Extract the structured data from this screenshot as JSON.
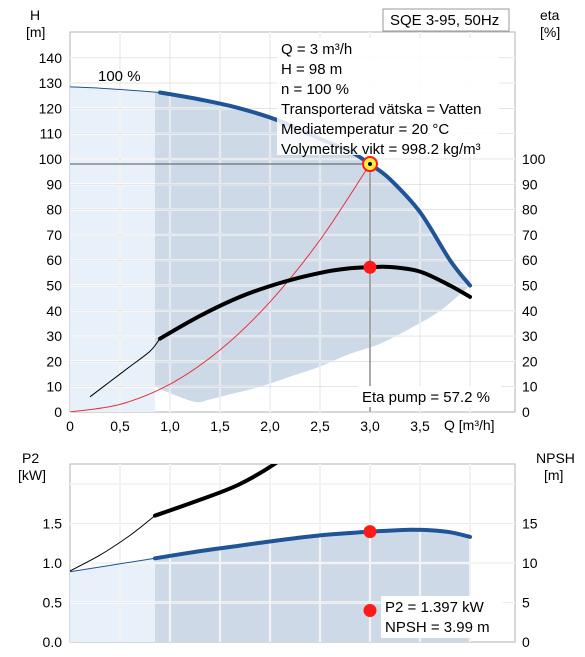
{
  "chart_data": [
    {
      "type": "line",
      "title": "SQE 3-95, 50Hz",
      "ylabel_left": "H",
      "ylabel_left_unit": "[m]",
      "ylabel_right": "eta",
      "ylabel_right_unit": "[%]",
      "xlabel": "Q [m³/h]",
      "xlim": [
        0,
        4
      ],
      "ylim": [
        0,
        150
      ],
      "x_ticks": [
        "0",
        "0,5",
        "1,0",
        "1,5",
        "2,0",
        "2,5",
        "3,0",
        "3,5"
      ],
      "y_ticks": [
        "0",
        "10",
        "20",
        "30",
        "40",
        "50",
        "60",
        "70",
        "80",
        "90",
        "100",
        "110",
        "120",
        "130",
        "140"
      ],
      "y_ticks_right": [
        "0",
        "10",
        "20",
        "30",
        "40",
        "50",
        "60",
        "70",
        "80",
        "90",
        "100"
      ],
      "speed_label": "100 %",
      "info_lines": [
        "Q = 3 m³/h",
        "H = 98 m",
        "n = 100 %",
        "Transporterad vätska = Vatten",
        "Mediatemperatur = 20 °C",
        "Volymetrisk vikt = 998.2 kg/m³"
      ],
      "eta_label": "Eta pump = 57.2 %",
      "grid": true,
      "series": {
        "head_thin": {
          "x": [
            0,
            0.3,
            0.6,
            0.9
          ],
          "y": [
            128.5,
            128,
            127.2,
            126.3
          ]
        },
        "head": {
          "x": [
            0.9,
            1.3,
            1.7,
            2.1,
            2.5,
            2.8,
            3.0,
            3.2,
            3.5,
            3.8,
            4.0
          ],
          "y": [
            126.3,
            123.5,
            120,
            115,
            108,
            103,
            98,
            92,
            79,
            60,
            50
          ]
        },
        "eta_thin": {
          "x": [
            0.2,
            0.4,
            0.6,
            0.8,
            0.9
          ],
          "y": [
            6,
            12,
            18,
            24,
            29
          ]
        },
        "eta": {
          "x": [
            0.9,
            1.3,
            1.7,
            2.1,
            2.5,
            2.8,
            3.0,
            3.2,
            3.5,
            3.8,
            4.0
          ],
          "y": [
            29,
            38,
            45.5,
            51,
            55,
            56.8,
            57.2,
            57.3,
            55.5,
            50,
            45.5
          ]
        },
        "system_curve": {
          "x": [
            0,
            0.5,
            1.0,
            1.5,
            2.0,
            2.5,
            3.0
          ],
          "y": [
            0,
            3,
            11,
            24.5,
            43.5,
            68,
            98
          ]
        },
        "region_upper": {
          "x": [
            0,
            0.9,
            1.3,
            1.7,
            2.1,
            2.5,
            2.8,
            3.0,
            3.2,
            3.5,
            3.8,
            4.0
          ],
          "y": [
            128.5,
            126.3,
            123.5,
            120,
            115,
            108,
            103,
            98,
            92,
            79,
            60,
            50
          ]
        },
        "region_lower": {
          "x": [
            4.0,
            3.7,
            3.4,
            3.1,
            2.8,
            2.5,
            2.2,
            1.9,
            1.6,
            1.4,
            1.25,
            1.0,
            0.85,
            0.2
          ],
          "y": [
            50,
            40,
            33,
            27,
            23,
            18,
            14,
            10,
            7,
            5,
            4,
            7.5,
            10,
            8
          ]
        },
        "light_region_x": [
          0,
          0.85
        ]
      },
      "operating_point": {
        "x": 3.0,
        "H": 98,
        "eta": 57.2
      }
    },
    {
      "type": "line",
      "ylabel_left": "P2",
      "ylabel_left_unit": "[kW]",
      "ylabel_right": "NPSH",
      "ylabel_right_unit": "[m]",
      "xlim": [
        0,
        4
      ],
      "ylim": [
        0,
        2.0
      ],
      "y_ticks": [
        "0.0",
        "0.5",
        "1.0",
        "1.5"
      ],
      "y_ticks_right": [
        "0",
        "5",
        "10",
        "15"
      ],
      "grid": true,
      "p2_label": "P2 = 1.397 kW",
      "npsh_label": "NPSH = 3.99 m",
      "series": {
        "p2_thin": {
          "x": [
            0,
            0.3,
            0.6,
            0.85
          ],
          "y": [
            0.89,
            0.95,
            1.01,
            1.06
          ]
        },
        "p2": {
          "x": [
            0.85,
            1.3,
            1.7,
            2.1,
            2.5,
            2.8,
            3.0,
            3.2,
            3.4,
            3.6,
            3.8,
            4.0
          ],
          "y": [
            1.06,
            1.15,
            1.22,
            1.29,
            1.35,
            1.38,
            1.397,
            1.41,
            1.42,
            1.415,
            1.39,
            1.33
          ]
        },
        "npsh_thin": {
          "x": [
            0,
            0.3,
            0.6,
            0.85
          ],
          "y": [
            0.9,
            1.1,
            1.35,
            1.6
          ]
        },
        "npsh": {
          "x": [
            0.85,
            1.3,
            1.7,
            2.1,
            2.5,
            2.8,
            3.0,
            3.3,
            3.6,
            3.8,
            4.0
          ],
          "y": [
            1.6,
            1.8,
            2.0,
            2.3,
            2.7,
            3.3,
            3.99,
            4.9,
            6.1,
            7.1,
            8.4
          ]
        },
        "region_upper": {
          "x": [
            0.85,
            1.3,
            1.7,
            2.1,
            2.5,
            2.8,
            3.0,
            3.2,
            3.4,
            3.6,
            3.8,
            4.0
          ],
          "y": [
            1.06,
            1.15,
            1.22,
            1.29,
            1.35,
            1.38,
            1.397,
            1.41,
            1.42,
            1.415,
            1.39,
            1.33
          ]
        },
        "light_region_x": [
          0,
          0.85
        ]
      },
      "operating_point": {
        "x": 3.0,
        "P2": 1.397,
        "NPSH": 3.99
      }
    }
  ],
  "colors": {
    "blue_curve": "#1f5496",
    "black_curve": "#000000",
    "system_curve": "#e8303a",
    "region_dark": "#cdd9e6",
    "region_light": "#e8f0f9",
    "grid": "#ffffff",
    "grid_outer": "#c8c8c8",
    "point_red": "#ff1a1a",
    "point_yellow": "#ffef3a"
  }
}
